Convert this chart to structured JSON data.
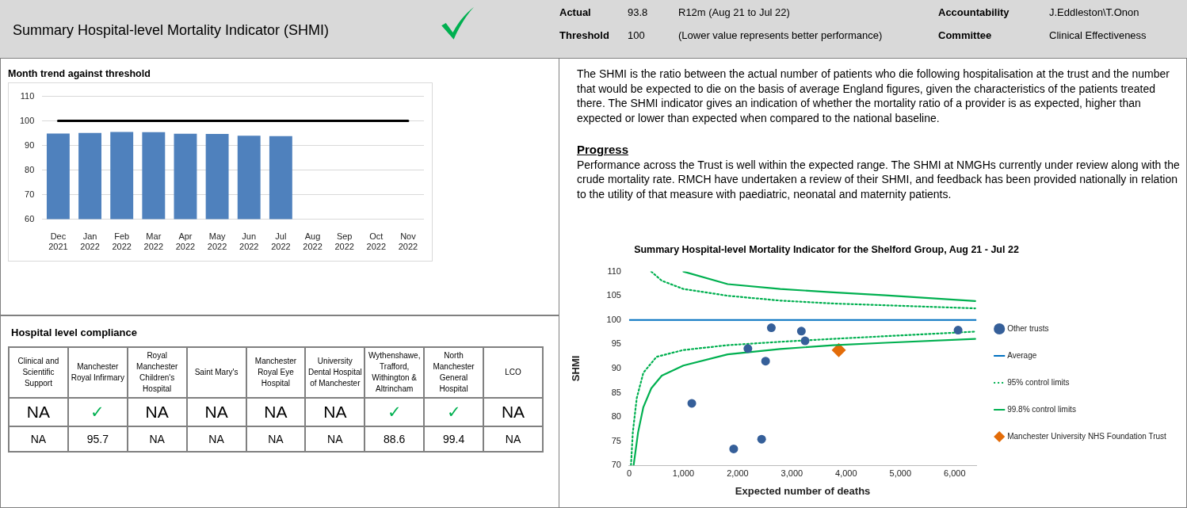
{
  "chart_data": [
    {
      "type": "other",
      "title": "Summary Hospital-level Mortality Indicator (SHMI)",
      "annotations": [
        "Actual",
        "93.8",
        "R12m (Aug 21 to Jul 22)",
        "Accountability",
        "J.Eddleston\\T.Onon",
        "Threshold",
        "100",
        "(Lower value represents better performance)",
        "Committee",
        "Clinical Effectiveness"
      ]
    },
    {
      "type": "bar",
      "title": "Month trend against threshold",
      "categories": [
        "Dec 2021",
        "Jan 2022",
        "Feb 2022",
        "Mar 2022",
        "Apr 2022",
        "May 2022",
        "Jun 2022",
        "Jul 2022",
        "Aug 2022",
        "Sep 2022",
        "Oct 2022",
        "Nov 2022"
      ],
      "series": [
        {
          "type": "bar",
          "color": "#4f81bd",
          "values": [
            94.9,
            95.1,
            95.5,
            95.4,
            94.8,
            94.7,
            94.0,
            93.8,
            null,
            null,
            null,
            null
          ]
        },
        {
          "type": "line",
          "color": "#000000",
          "marker": "none",
          "values": [
            100,
            100,
            100,
            100,
            100,
            100,
            100,
            100,
            100,
            100,
            100,
            100
          ]
        }
      ],
      "ylim": [
        60,
        110
      ],
      "yticks": [
        60,
        70,
        80,
        90,
        100,
        110
      ],
      "grid": "y",
      "legend": false
    },
    {
      "type": "other",
      "annotations": [
        "The SHMI is the ratio between the actual number of patients who die following hospitalisation at the trust and the number that would be expected to die on the basis of average England figures, given the characteristics of the patients treated there. The SHMI indicator gives an indication of whether the mortality ratio of a provider is as expected, higher than expected or lower than expected when compared to the national baseline.",
        "Progress",
        "Performance across the Trust is well within the expected range. The SHMI at NMGHs currently under review along with the crude mortality rate. RMCH have undertaken a review of their SHMI, and feedback has been provided nationally in relation to the utility of that measure with paediatric, neonatal and maternity patients."
      ]
    },
    {
      "type": "other",
      "title": "Hospital level compliance",
      "categories": [
        "Clinical and Scientific Support",
        "Manchester Royal Infirmary",
        "Royal Manchester Children's Hospital",
        "Saint Mary's",
        "Manchester Royal Eye Hospital",
        "University Dental Hospital of Manchester",
        "Wythenshawe, Trafford, Withington & Altrincham",
        "North Manchester General Hospital",
        "LCO"
      ],
      "cell_labels": [
        [
          "NA",
          "✓",
          "NA",
          "NA",
          "NA",
          "NA",
          "✓",
          "✓",
          "NA"
        ],
        [
          "NA",
          "95.7",
          "NA",
          "NA",
          "NA",
          "NA",
          "88.6",
          "99.4",
          "NA"
        ]
      ]
    },
    {
      "type": "scatter",
      "title": "Summary Hospital-level Mortality Indicator for the Shelford Group, Aug 21 - Jul 22",
      "xlabel": "Expected number of deaths",
      "ylabel": "SHMI",
      "xlim": [
        0,
        6400
      ],
      "xticks": [
        0,
        {
          "value": 1000,
          "label": "1,000"
        },
        {
          "value": 2000,
          "label": "2,000"
        },
        {
          "value": 3000,
          "label": "3,000"
        },
        {
          "value": 4000,
          "label": "4,000"
        },
        {
          "value": 5000,
          "label": "5,000"
        },
        {
          "value": 6000,
          "label": "6,000"
        }
      ],
      "ylim": [
        70,
        110
      ],
      "yticks": [
        70,
        75,
        80,
        85,
        90,
        95,
        100,
        105,
        110
      ],
      "grid": false,
      "legend": "right",
      "series": [
        {
          "name": "Other trusts",
          "type": "scatter",
          "marker": "circle",
          "color": "#355f99",
          "x": [
            1155,
            1927,
            2442,
            2189,
            2515,
            2621,
            3175,
            3243,
            6063
          ],
          "values": [
            82.8,
            73.4,
            75.4,
            94.1,
            91.5,
            98.4,
            97.7,
            95.7,
            97.9
          ]
        },
        {
          "name": "Average",
          "type": "line",
          "marker": "none",
          "line_style": "solid",
          "color": "#0070c0",
          "x": [
            0,
            6400
          ],
          "values": [
            100,
            100
          ]
        },
        {
          "name": "95% control limits",
          "type": "line",
          "marker": "none",
          "line_style": "dotted",
          "color": "#00b050",
          "x": [
            408,
            602,
            1000,
            1816,
            2786,
            3757,
            6379
          ],
          "values": [
            110,
            108.1,
            106.4,
            105.0,
            104.0,
            103.4,
            102.4
          ]
        },
        {
          "type": "line",
          "marker": "none",
          "line_style": "dotted",
          "color": "#00b050",
          "x": [
            34,
            68,
            141,
            262,
            505,
            1000,
            1816,
            2786,
            3757,
            6379
          ],
          "values": [
            70,
            76.8,
            83.9,
            89.1,
            92.4,
            93.8,
            94.8,
            95.5,
            96.1,
            97.6
          ]
        },
        {
          "name": "99.8% control limits",
          "type": "line",
          "marker": "none",
          "line_style": "solid",
          "color": "#00b050",
          "x": [
            1000,
            1816,
            2786,
            3757,
            4728,
            6379
          ],
          "values": [
            110,
            107.4,
            106.4,
            105.7,
            105.1,
            103.9
          ]
        },
        {
          "type": "line",
          "marker": "none",
          "line_style": "solid",
          "color": "#00b050",
          "x": [
            83,
            165,
            262,
            408,
            602,
            1000,
            1816,
            2786,
            3757,
            4728,
            6379
          ],
          "values": [
            70,
            76.8,
            82.0,
            85.9,
            88.5,
            90.6,
            92.9,
            94.0,
            94.8,
            95.3,
            96.1
          ]
        },
        {
          "name": "Manchester University NHS Foundation Trust",
          "type": "scatter",
          "marker": "diamond",
          "color": "#e36c09",
          "x": [
            3864
          ],
          "values": [
            93.8
          ]
        }
      ]
    }
  ]
}
